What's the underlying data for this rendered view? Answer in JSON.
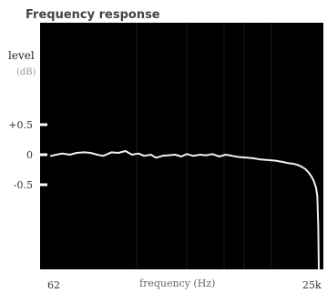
{
  "chart_data": {
    "type": "line",
    "title": "Frequency response",
    "ylabel": "level",
    "yunit": "(dB)",
    "xlabel": "frequency (Hz)",
    "x_scale": "log",
    "xlim": [
      62,
      25000
    ],
    "ylim": [
      -3.0,
      1.15
    ],
    "x_tick_labels": [
      "62",
      "25k"
    ],
    "y_ticks": [
      {
        "value": 0.5,
        "label": "+0.5"
      },
      {
        "value": 0,
        "label": "0"
      },
      {
        "value": -0.5,
        "label": "-0.5"
      }
    ],
    "background": "#000000",
    "trace_color": "#f2f2f2",
    "grid": false,
    "series": [
      {
        "x": [
          62,
          70,
          80,
          95,
          110,
          130,
          150,
          175,
          200,
          240,
          280,
          330,
          380,
          440,
          500,
          580,
          650,
          750,
          850,
          1000,
          1150,
          1300,
          1500,
          1750,
          2000,
          2300,
          2700,
          3100,
          3600,
          4200,
          5000,
          5800,
          6800,
          8000,
          9500,
          11000,
          12500,
          14000,
          15500,
          17000,
          18500,
          20000,
          21500,
          22500,
          23500,
          24200,
          24700,
          25000
        ],
        "y": [
          -0.02,
          0.0,
          0.02,
          0.0,
          0.03,
          0.04,
          0.03,
          0.0,
          -0.02,
          0.04,
          0.03,
          0.06,
          0.0,
          0.02,
          -0.02,
          0.0,
          -0.05,
          -0.02,
          -0.01,
          0.0,
          -0.03,
          0.01,
          -0.02,
          0.0,
          -0.01,
          0.01,
          -0.03,
          0.0,
          -0.02,
          -0.04,
          -0.05,
          -0.06,
          -0.08,
          -0.09,
          -0.1,
          -0.12,
          -0.14,
          -0.15,
          -0.17,
          -0.2,
          -0.24,
          -0.3,
          -0.38,
          -0.45,
          -0.55,
          -0.7,
          -1.2,
          -2.95
        ]
      }
    ]
  }
}
